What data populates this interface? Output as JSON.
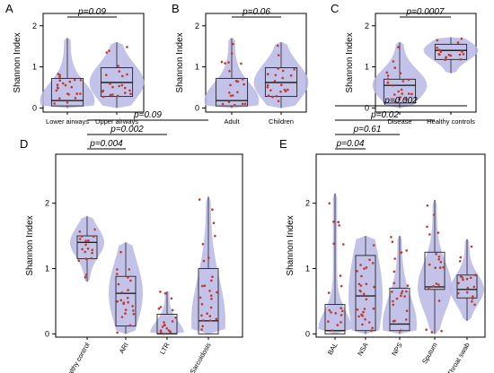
{
  "chart_data": [
    {
      "panel": "A",
      "type": "violin-box",
      "ylabel": "Shannon Index",
      "ylim": [
        -0.1,
        2.3
      ],
      "yticks": [
        0,
        1,
        2
      ],
      "categories": [
        "Lower airways",
        "Upper airways"
      ],
      "median": [
        0.18,
        0.62
      ],
      "q1": [
        0.05,
        0.28
      ],
      "q3": [
        0.72,
        0.98
      ],
      "whisker_low": [
        0.0,
        0.0
      ],
      "whisker_high": [
        1.7,
        1.6
      ],
      "comparisons": [
        {
          "from": 0,
          "to": 1,
          "label": "p=0.09"
        }
      ]
    },
    {
      "panel": "B",
      "type": "violin-box",
      "ylabel": "Shannon Index",
      "ylim": [
        -0.1,
        2.3
      ],
      "yticks": [
        0,
        1,
        2
      ],
      "categories": [
        "Adult",
        "Children"
      ],
      "median": [
        0.18,
        0.62
      ],
      "q1": [
        0.05,
        0.28
      ],
      "q3": [
        0.72,
        0.98
      ],
      "whisker_low": [
        0.0,
        0.0
      ],
      "whisker_high": [
        1.7,
        1.6
      ],
      "comparisons": [
        {
          "from": 0,
          "to": 1,
          "label": "p=0.06"
        }
      ]
    },
    {
      "panel": "C",
      "type": "violin-box",
      "ylabel": "Shannon Index",
      "ylim": [
        -0.1,
        2.3
      ],
      "yticks": [
        0,
        1,
        2
      ],
      "categories": [
        "Disease",
        "Healthy controls"
      ],
      "median": [
        0.55,
        1.4
      ],
      "q1": [
        0.12,
        1.18
      ],
      "q3": [
        0.7,
        1.55
      ],
      "whisker_low": [
        0.0,
        0.85
      ],
      "whisker_high": [
        1.6,
        1.72
      ],
      "comparisons": [
        {
          "from": 0,
          "to": 1,
          "label": "p=0.0007"
        }
      ]
    },
    {
      "panel": "D",
      "type": "violin-box",
      "ylabel": "Shannon Index",
      "ylim": [
        -0.05,
        2.75
      ],
      "yticks": [
        0,
        1,
        2
      ],
      "categories": [
        "Healthy control",
        "ARI",
        "LTR",
        "Sarcoidosis"
      ],
      "median": [
        1.4,
        0.62,
        0.0,
        0.2
      ],
      "q1": [
        1.15,
        0.12,
        0.0,
        0.0
      ],
      "q3": [
        1.5,
        0.88,
        0.3,
        1.0
      ],
      "whisker_low": [
        0.8,
        0.0,
        0.0,
        0.0
      ],
      "whisker_high": [
        1.8,
        1.4,
        0.65,
        2.1
      ],
      "comparisons": [
        {
          "from": 0,
          "to": 1,
          "label": "p=0.004"
        },
        {
          "from": 0,
          "to": 2,
          "label": "p=0.002"
        },
        {
          "from": 0,
          "to": 3,
          "label": "p=0.09"
        }
      ]
    },
    {
      "panel": "E",
      "type": "violin-box",
      "ylabel": "Shannon Index",
      "ylim": [
        -0.05,
        2.75
      ],
      "yticks": [
        0,
        1,
        2
      ],
      "categories": [
        "BAL",
        "NSA",
        "NPS",
        "Sputum",
        "Throat swab"
      ],
      "median": [
        0.05,
        0.58,
        0.15,
        0.72,
        0.68
      ],
      "q1": [
        0.0,
        0.05,
        0.05,
        0.68,
        0.55
      ],
      "q3": [
        0.45,
        1.2,
        0.7,
        1.25,
        0.9
      ],
      "whisker_low": [
        0.0,
        0.0,
        0.0,
        0.0,
        0.2
      ],
      "whisker_high": [
        2.15,
        1.5,
        1.5,
        2.05,
        1.45
      ],
      "comparisons": [
        {
          "from": 0,
          "to": 1,
          "label": "p=0.04"
        },
        {
          "from": 0,
          "to": 2,
          "label": "p=0.61"
        },
        {
          "from": 0,
          "to": 3,
          "label": "p=0.02"
        },
        {
          "from": 0,
          "to": 4,
          "label": "p=0.002"
        }
      ]
    }
  ],
  "colors": {
    "violin": "#b8b8e6",
    "point": "#c0392b",
    "box": "#222222",
    "frame": "#000000"
  }
}
